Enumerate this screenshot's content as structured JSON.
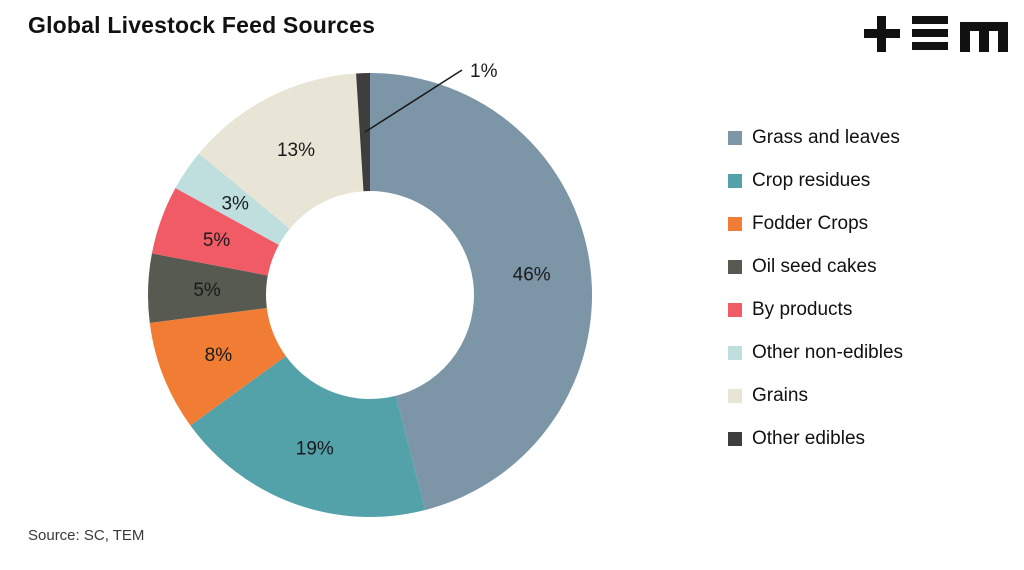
{
  "title": "Global Livestock Feed Sources",
  "source": "Source: SC, TEM",
  "logo": {
    "alt": "TEM"
  },
  "chart_data": {
    "type": "pie",
    "subtype": "donut",
    "title": "Global Livestock Feed Sources",
    "categories": [
      "Grass and leaves",
      "Crop residues",
      "Fodder Crops",
      "Oil seed cakes",
      "By products",
      "Other non-edibles",
      "Grains",
      "Other edibles"
    ],
    "values": [
      46,
      19,
      8,
      5,
      5,
      3,
      13,
      1
    ],
    "labels": [
      "46%",
      "19%",
      "8%",
      "5%",
      "5%",
      "3%",
      "13%",
      "1%"
    ],
    "colors": [
      "#7C96A8",
      "#53A2AA",
      "#F07D33",
      "#565A50",
      "#F05B66",
      "#BFDFDF",
      "#E8E5D6",
      "#3E3E3E"
    ],
    "legend_position": "right",
    "start_angle_deg": -90,
    "direction": "clockwise",
    "source": "Source: SC, TEM"
  }
}
